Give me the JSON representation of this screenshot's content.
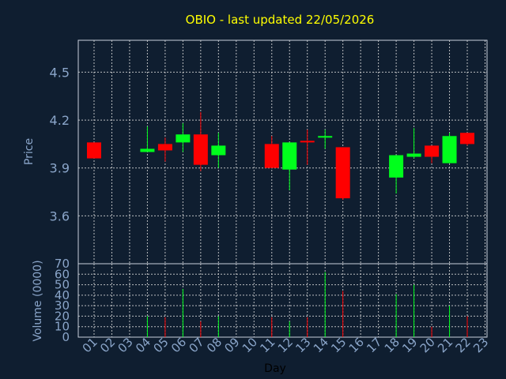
{
  "chart_data": {
    "type": "candlestick",
    "title": "OBIO - last updated 22/05/2026",
    "x_label": "Day",
    "days": [
      "01",
      "02",
      "03",
      "04",
      "05",
      "06",
      "07",
      "08",
      "09",
      "10",
      "11",
      "12",
      "13",
      "14",
      "15",
      "16",
      "17",
      "18",
      "19",
      "20",
      "21",
      "22",
      "23"
    ],
    "price": {
      "ylabel": "Price",
      "ylim": [
        3.3,
        4.7
      ],
      "yticks": [
        "3.6",
        "3.9",
        "4.2",
        "4.5"
      ],
      "candles": [
        {
          "day": "01",
          "open": 4.06,
          "high": 4.06,
          "low": 3.96,
          "close": 3.96
        },
        {
          "day": "04",
          "open": 4.0,
          "high": 4.16,
          "low": 4.0,
          "close": 4.02
        },
        {
          "day": "05",
          "open": 4.05,
          "high": 4.09,
          "low": 3.94,
          "close": 4.01
        },
        {
          "day": "06",
          "open": 4.06,
          "high": 4.18,
          "low": 4.0,
          "close": 4.11
        },
        {
          "day": "07",
          "open": 4.11,
          "high": 4.25,
          "low": 3.88,
          "close": 3.92
        },
        {
          "day": "08",
          "open": 3.98,
          "high": 4.12,
          "low": 3.9,
          "close": 4.04
        },
        {
          "day": "11",
          "open": 4.05,
          "high": 4.1,
          "low": 3.9,
          "close": 3.9
        },
        {
          "day": "12",
          "open": 3.89,
          "high": 4.06,
          "low": 3.76,
          "close": 4.06
        },
        {
          "day": "13",
          "open": 4.07,
          "high": 4.14,
          "low": 3.92,
          "close": 4.06
        },
        {
          "day": "14",
          "open": 4.09,
          "high": 4.14,
          "low": 4.02,
          "close": 4.1
        },
        {
          "day": "15",
          "open": 4.03,
          "high": 4.03,
          "low": 3.7,
          "close": 3.71
        },
        {
          "day": "18",
          "open": 3.84,
          "high": 3.98,
          "low": 3.74,
          "close": 3.98
        },
        {
          "day": "19",
          "open": 3.97,
          "high": 4.15,
          "low": 3.96,
          "close": 3.99
        },
        {
          "day": "20",
          "open": 4.04,
          "high": 4.04,
          "low": 3.93,
          "close": 3.97
        },
        {
          "day": "21",
          "open": 3.93,
          "high": 4.12,
          "low": 3.93,
          "close": 4.1
        },
        {
          "day": "22",
          "open": 4.12,
          "high": 4.12,
          "low": 4.04,
          "close": 4.05
        }
      ]
    },
    "volume": {
      "ylabel": "Volume (0000)",
      "ylim": [
        0,
        70
      ],
      "yticks": [
        "0",
        "10",
        "20",
        "30",
        "40",
        "50",
        "60",
        "70"
      ],
      "bars": [
        {
          "day": "04",
          "value": 20,
          "direction": "up"
        },
        {
          "day": "05",
          "value": 19,
          "direction": "down"
        },
        {
          "day": "06",
          "value": 46,
          "direction": "up"
        },
        {
          "day": "07",
          "value": 15,
          "direction": "down"
        },
        {
          "day": "08",
          "value": 20,
          "direction": "up"
        },
        {
          "day": "11",
          "value": 19,
          "direction": "down"
        },
        {
          "day": "12",
          "value": 15,
          "direction": "up"
        },
        {
          "day": "13",
          "value": 19,
          "direction": "down"
        },
        {
          "day": "14",
          "value": 62,
          "direction": "up"
        },
        {
          "day": "15",
          "value": 44,
          "direction": "down"
        },
        {
          "day": "18",
          "value": 41,
          "direction": "up"
        },
        {
          "day": "19",
          "value": 50,
          "direction": "up"
        },
        {
          "day": "20",
          "value": 10,
          "direction": "down"
        },
        {
          "day": "21",
          "value": 30,
          "direction": "up"
        },
        {
          "day": "22",
          "value": 20,
          "direction": "down"
        }
      ]
    },
    "colors": {
      "background": "#0f1e30",
      "up": "#00ff1c",
      "down": "#ff0000",
      "grid": "#d8d8d8",
      "axis_text": "#8aa5c9",
      "title": "#ffff00"
    },
    "grid": true
  }
}
